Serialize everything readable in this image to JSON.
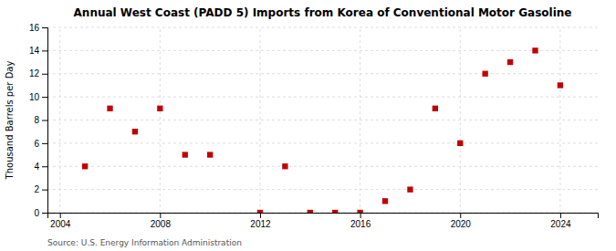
{
  "chart_data": {
    "type": "scatter",
    "title": "Annual West Coast (PADD 5) Imports from Korea of Conventional Motor Gasoline",
    "ylabel": "Thousand Barrels per Day",
    "source": "Source: U.S. Energy Information Administration",
    "x": [
      2005,
      2006,
      2007,
      2008,
      2009,
      2010,
      2012,
      2013,
      2014,
      2015,
      2016,
      2017,
      2018,
      2019,
      2020,
      2021,
      2022,
      2023,
      2024
    ],
    "values": [
      4,
      9,
      7,
      9,
      5,
      5,
      0,
      4,
      0,
      0,
      0,
      1,
      2,
      9,
      6,
      12,
      13,
      14,
      11
    ],
    "color": "#c00000",
    "marker": "square",
    "xlim": [
      2003.5,
      2025.5
    ],
    "xticks": [
      2004,
      2008,
      2012,
      2016,
      2020,
      2024
    ],
    "ylim": [
      0,
      16
    ],
    "yticks": [
      0,
      2,
      4,
      6,
      8,
      10,
      12,
      14,
      16
    ],
    "grid": true
  }
}
